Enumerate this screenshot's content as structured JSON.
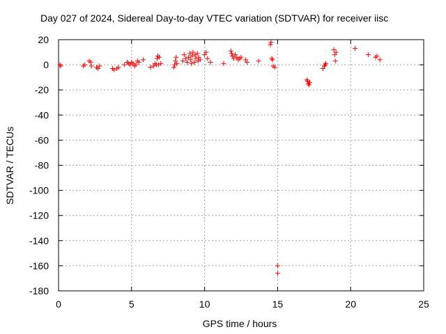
{
  "chart_data": {
    "type": "scatter",
    "title": "Day 027 of 2024, Sidereal Day-to-day VTEC variation (SDTVAR) for receiver iisc",
    "xlabel": "GPS time / hours",
    "ylabel": "SDTVAR / TECUs",
    "xlim": [
      0,
      25
    ],
    "ylim": [
      -180,
      20
    ],
    "xticks": [
      0,
      5,
      10,
      15,
      20,
      25
    ],
    "yticks": [
      20,
      0,
      -20,
      -40,
      -60,
      -80,
      -100,
      -120,
      -140,
      -160,
      -180
    ],
    "grid": true,
    "marker": "+",
    "color": "#ff0000",
    "series": [
      {
        "name": "SDTVAR",
        "x": [
          0.1,
          0.15,
          1.7,
          1.8,
          2.1,
          2.2,
          2.25,
          2.6,
          2.7,
          2.8,
          3.7,
          3.8,
          4.0,
          4.1,
          4.5,
          4.7,
          4.8,
          4.9,
          5.0,
          5.1,
          5.2,
          5.3,
          5.4,
          5.5,
          5.8,
          6.3,
          6.5,
          6.6,
          6.7,
          6.8,
          6.9,
          7.0,
          6.75,
          6.85,
          7.9,
          7.95,
          8.0,
          8.05,
          8.1,
          8.5,
          8.6,
          8.7,
          8.8,
          8.9,
          9.0,
          9.05,
          9.1,
          9.15,
          9.2,
          9.3,
          9.35,
          9.4,
          9.5,
          9.55,
          9.6,
          9.7,
          10.0,
          10.1,
          10.2,
          10.4,
          11.3,
          11.8,
          11.85,
          11.9,
          12.0,
          12.1,
          12.2,
          12.3,
          12.4,
          12.5,
          12.8,
          12.9,
          13.7,
          14.5,
          14.55,
          14.6,
          14.65,
          14.7,
          14.8,
          15.0,
          15.0,
          17.0,
          17.05,
          17.1,
          17.15,
          17.2,
          18.1,
          18.2,
          18.25,
          18.3,
          18.85,
          18.9,
          18.95,
          19.0,
          20.3,
          21.2,
          21.7,
          21.8,
          22.0
        ],
        "y": [
          0,
          -1,
          -1,
          0,
          3,
          2,
          -1,
          -2,
          -3,
          -1,
          -3,
          -4,
          -3,
          -2,
          0,
          2,
          1,
          0,
          2,
          1,
          -1,
          0,
          3,
          2,
          4,
          -2,
          -1,
          1,
          0,
          7,
          6,
          1,
          5,
          0,
          -2,
          0,
          3,
          6,
          1,
          3,
          8,
          5,
          2,
          6,
          9,
          4,
          1,
          7,
          10,
          2,
          8,
          5,
          9,
          3,
          6,
          4,
          8,
          10,
          5,
          2,
          1,
          11,
          9,
          7,
          5,
          8,
          6,
          4,
          5,
          6,
          4,
          2,
          3,
          16,
          18,
          5,
          4,
          -1,
          -2,
          -160,
          -166,
          -12,
          -13,
          -15,
          -16,
          -14,
          -3,
          -1,
          0,
          1,
          12,
          8,
          3,
          10,
          13,
          8,
          6,
          7,
          4
        ]
      }
    ]
  }
}
